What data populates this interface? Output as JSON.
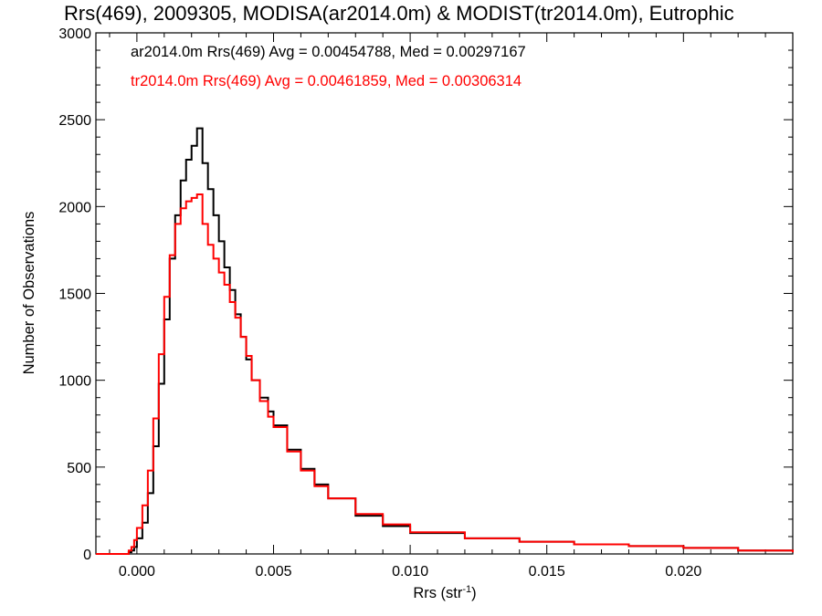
{
  "chart_data": {
    "type": "line",
    "title": "Rrs(469), 2009305, MODISA(ar2014.0m) & MODIST(tr2014.0m), Eutrophic",
    "xlabel_main": "Rrs (str",
    "xlabel_sup": "-1",
    "xlabel_close": ")",
    "ylabel": "Number of Observations",
    "xlim": [
      -0.0015,
      0.024
    ],
    "ylim": [
      0,
      3000
    ],
    "xticks": [
      0.0,
      0.005,
      0.01,
      0.015,
      0.02
    ],
    "xtick_labels": [
      "0.000",
      "0.005",
      "0.010",
      "0.015",
      "0.020"
    ],
    "yticks": [
      0,
      500,
      1000,
      1500,
      2000,
      2500,
      3000
    ],
    "ytick_labels": [
      "0",
      "500",
      "1000",
      "1500",
      "2000",
      "2500",
      "3000"
    ],
    "legend_placement": "top-left",
    "series": [
      {
        "label": "ar2014.0m Rrs(469) Avg = 0.00454788, Med = 0.00297167",
        "color": "#000000",
        "points": [
          [
            -0.0015,
            0
          ],
          [
            -0.0005,
            0
          ],
          [
            -0.0003,
            10
          ],
          [
            -0.0002,
            20
          ],
          [
            -0.0001,
            40
          ],
          [
            0.0,
            90
          ],
          [
            0.0002,
            180
          ],
          [
            0.0004,
            350
          ],
          [
            0.0006,
            620
          ],
          [
            0.0008,
            980
          ],
          [
            0.001,
            1350
          ],
          [
            0.0012,
            1700
          ],
          [
            0.0014,
            1950
          ],
          [
            0.0016,
            2150
          ],
          [
            0.0018,
            2270
          ],
          [
            0.002,
            2350
          ],
          [
            0.0022,
            2450
          ],
          [
            0.0024,
            2250
          ],
          [
            0.0026,
            2100
          ],
          [
            0.0028,
            1950
          ],
          [
            0.003,
            1800
          ],
          [
            0.0032,
            1650
          ],
          [
            0.0034,
            1520
          ],
          [
            0.0036,
            1380
          ],
          [
            0.0038,
            1250
          ],
          [
            0.004,
            1120
          ],
          [
            0.0042,
            1000
          ],
          [
            0.0045,
            900
          ],
          [
            0.0048,
            820
          ],
          [
            0.005,
            740
          ],
          [
            0.0055,
            600
          ],
          [
            0.006,
            490
          ],
          [
            0.0065,
            400
          ],
          [
            0.007,
            320
          ],
          [
            0.008,
            220
          ],
          [
            0.009,
            160
          ],
          [
            0.01,
            120
          ],
          [
            0.012,
            90
          ],
          [
            0.014,
            70
          ],
          [
            0.016,
            55
          ],
          [
            0.018,
            45
          ],
          [
            0.02,
            35
          ],
          [
            0.022,
            20
          ],
          [
            0.024,
            10
          ]
        ]
      },
      {
        "label": "tr2014.0m Rrs(469) Avg = 0.00461859, Med = 0.00306314",
        "color": "#ff0000",
        "points": [
          [
            -0.0015,
            0
          ],
          [
            -0.0005,
            0
          ],
          [
            -0.0003,
            20
          ],
          [
            -0.0002,
            40
          ],
          [
            -0.0001,
            80
          ],
          [
            0.0,
            150
          ],
          [
            0.0002,
            280
          ],
          [
            0.0004,
            480
          ],
          [
            0.0006,
            780
          ],
          [
            0.0008,
            1150
          ],
          [
            0.001,
            1480
          ],
          [
            0.0012,
            1720
          ],
          [
            0.0014,
            1900
          ],
          [
            0.0016,
            1990
          ],
          [
            0.0018,
            2030
          ],
          [
            0.002,
            2050
          ],
          [
            0.0022,
            2070
          ],
          [
            0.0024,
            1900
          ],
          [
            0.0026,
            1780
          ],
          [
            0.0028,
            1700
          ],
          [
            0.003,
            1620
          ],
          [
            0.0032,
            1550
          ],
          [
            0.0034,
            1450
          ],
          [
            0.0036,
            1360
          ],
          [
            0.0038,
            1250
          ],
          [
            0.004,
            1140
          ],
          [
            0.0042,
            1000
          ],
          [
            0.0045,
            880
          ],
          [
            0.0048,
            790
          ],
          [
            0.005,
            730
          ],
          [
            0.0055,
            590
          ],
          [
            0.006,
            480
          ],
          [
            0.0065,
            390
          ],
          [
            0.007,
            320
          ],
          [
            0.008,
            230
          ],
          [
            0.009,
            170
          ],
          [
            0.01,
            125
          ],
          [
            0.012,
            90
          ],
          [
            0.014,
            70
          ],
          [
            0.016,
            55
          ],
          [
            0.018,
            45
          ],
          [
            0.02,
            35
          ],
          [
            0.022,
            20
          ],
          [
            0.024,
            10
          ]
        ]
      }
    ]
  }
}
